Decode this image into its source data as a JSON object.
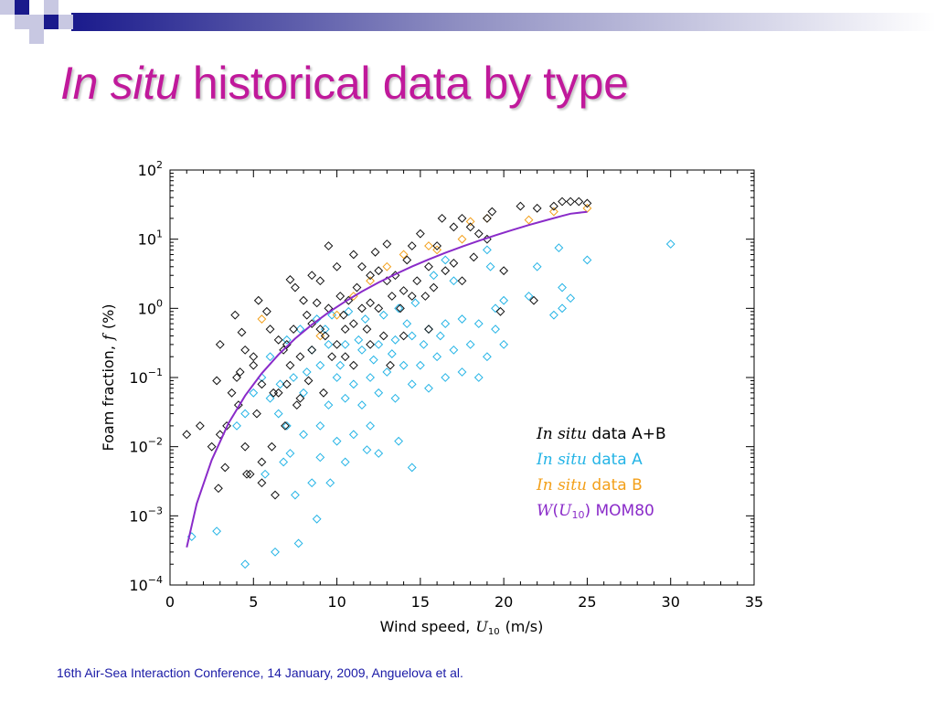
{
  "title": {
    "italic": "In situ",
    "rest": " historical data by type"
  },
  "footer": "16th Air-Sea Interaction Conference, 14 January, 2009, Anguelova et al.",
  "chart_data": {
    "type": "scatter",
    "xlabel": {
      "text": "Wind speed,",
      "sym": "U",
      "sub": "10",
      "unit": "(m/s)"
    },
    "ylabel": {
      "text": "Foam fraction,",
      "sym": "f",
      "unit": "(%)"
    },
    "xlim": [
      0,
      35
    ],
    "ylim": [
      0.0001,
      100
    ],
    "yscale": "log",
    "x_ticks": [
      "0",
      "5",
      "10",
      "15",
      "20",
      "25",
      "30",
      "35"
    ],
    "y_ticks": [
      {
        "base": "10",
        "exp": "2"
      },
      {
        "base": "10",
        "exp": "1"
      },
      {
        "base": "10",
        "exp": "0"
      },
      {
        "base": "10",
        "exp": "−1"
      },
      {
        "base": "10",
        "exp": "−2"
      },
      {
        "base": "10",
        "exp": "−3"
      },
      {
        "base": "10",
        "exp": "−4"
      }
    ],
    "legend_position": "lower-right",
    "series": [
      {
        "name": "In situ data A+B",
        "color": "#111111",
        "marker": "diamond",
        "points": [
          [
            1,
            0.015
          ],
          [
            1.8,
            0.02
          ],
          [
            2.5,
            0.01
          ],
          [
            2.8,
            0.09
          ],
          [
            3.0,
            0.3
          ],
          [
            3.0,
            0.015
          ],
          [
            3.4,
            0.02
          ],
          [
            3.7,
            0.06
          ],
          [
            3.9,
            0.8
          ],
          [
            4.0,
            0.1
          ],
          [
            4.2,
            0.12
          ],
          [
            4.3,
            0.45
          ],
          [
            4.5,
            0.25
          ],
          [
            4.5,
            0.01
          ],
          [
            4.6,
            0.004
          ],
          [
            4.8,
            0.004
          ],
          [
            5.0,
            0.2
          ],
          [
            5.0,
            0.15
          ],
          [
            5.3,
            1.3
          ],
          [
            5.5,
            0.08
          ],
          [
            5.5,
            0.006
          ],
          [
            5.5,
            0.003
          ],
          [
            5.8,
            0.9
          ],
          [
            6.0,
            0.5
          ],
          [
            6.2,
            0.06
          ],
          [
            6.3,
            0.002
          ],
          [
            6.5,
            0.35
          ],
          [
            6.5,
            0.06
          ],
          [
            6.8,
            0.25
          ],
          [
            7.0,
            0.08
          ],
          [
            7.0,
            0.3
          ],
          [
            7.2,
            0.15
          ],
          [
            7.2,
            2.6
          ],
          [
            7.4,
            0.5
          ],
          [
            7.5,
            2.0
          ],
          [
            7.8,
            0.05
          ],
          [
            7.8,
            0.2
          ],
          [
            8.0,
            1.3
          ],
          [
            8.2,
            0.8
          ],
          [
            8.5,
            0.6
          ],
          [
            8.5,
            0.25
          ],
          [
            8.5,
            3.0
          ],
          [
            8.8,
            1.2
          ],
          [
            9.0,
            0.5
          ],
          [
            9.0,
            2.5
          ],
          [
            9.3,
            0.4
          ],
          [
            9.5,
            1.0
          ],
          [
            9.5,
            8.0
          ],
          [
            9.7,
            0.2
          ],
          [
            10.0,
            0.3
          ],
          [
            10.0,
            4.0
          ],
          [
            10.2,
            1.5
          ],
          [
            10.4,
            0.8
          ],
          [
            10.5,
            0.5
          ],
          [
            10.7,
            1.3
          ],
          [
            11.0,
            6.0
          ],
          [
            11.0,
            0.6
          ],
          [
            11.2,
            2.0
          ],
          [
            11.5,
            1.0
          ],
          [
            11.5,
            4.0
          ],
          [
            11.8,
            0.5
          ],
          [
            12.0,
            3.0
          ],
          [
            12.0,
            1.2
          ],
          [
            12.3,
            6.5
          ],
          [
            12.5,
            1.0
          ],
          [
            12.5,
            3.5
          ],
          [
            12.8,
            0.4
          ],
          [
            13.0,
            2.5
          ],
          [
            13.0,
            8.5
          ],
          [
            13.3,
            1.5
          ],
          [
            13.5,
            3.0
          ],
          [
            13.8,
            1.0
          ],
          [
            14.0,
            1.8
          ],
          [
            14.2,
            5.0
          ],
          [
            14.5,
            1.5
          ],
          [
            14.5,
            8.0
          ],
          [
            14.8,
            2.5
          ],
          [
            15.0,
            12.0
          ],
          [
            15.3,
            1.5
          ],
          [
            15.5,
            4.0
          ],
          [
            15.8,
            2.0
          ],
          [
            16.0,
            8.0
          ],
          [
            16.3,
            20.0
          ],
          [
            16.5,
            3.5
          ],
          [
            17.0,
            4.5
          ],
          [
            17.0,
            15.0
          ],
          [
            17.5,
            2.5
          ],
          [
            17.5,
            20.0
          ],
          [
            18.0,
            15.0
          ],
          [
            18.2,
            5.5
          ],
          [
            18.5,
            12.0
          ],
          [
            19.0,
            20.0
          ],
          [
            19.0,
            10.0
          ],
          [
            19.3,
            25.0
          ],
          [
            19.8,
            0.9
          ],
          [
            20.0,
            3.5
          ],
          [
            21.0,
            30.0
          ],
          [
            21.8,
            1.3
          ],
          [
            22.0,
            28.0
          ],
          [
            23.0,
            30.0
          ],
          [
            23.5,
            35.0
          ],
          [
            24.0,
            35.0
          ],
          [
            24.5,
            35.0
          ],
          [
            25.0,
            33.0
          ],
          [
            12.0,
            0.3
          ],
          [
            11.0,
            0.15
          ],
          [
            10.5,
            0.2
          ],
          [
            9.2,
            0.06
          ],
          [
            8.3,
            0.09
          ],
          [
            7.6,
            0.04
          ],
          [
            6.9,
            0.02
          ],
          [
            6.1,
            0.01
          ],
          [
            5.2,
            0.03
          ],
          [
            4.1,
            0.04
          ],
          [
            3.3,
            0.005
          ],
          [
            2.9,
            0.0025
          ],
          [
            14.0,
            0.4
          ],
          [
            13.2,
            0.15
          ],
          [
            15.5,
            0.5
          ]
        ]
      },
      {
        "name": "In situ data A",
        "color": "#25b4e6",
        "marker": "diamond",
        "points": [
          [
            1.3,
            0.0005
          ],
          [
            2.8,
            0.0006
          ],
          [
            4.5,
            0.0002
          ],
          [
            6.3,
            0.0003
          ],
          [
            7.7,
            0.0004
          ],
          [
            8.8,
            0.0009
          ],
          [
            7.5,
            0.002
          ],
          [
            8.5,
            0.003
          ],
          [
            9.6,
            0.003
          ],
          [
            5.7,
            0.004
          ],
          [
            6.8,
            0.006
          ],
          [
            7.2,
            0.008
          ],
          [
            9.0,
            0.007
          ],
          [
            10.5,
            0.006
          ],
          [
            11.8,
            0.009
          ],
          [
            12.5,
            0.008
          ],
          [
            14.5,
            0.005
          ],
          [
            13.7,
            0.012
          ],
          [
            12.0,
            0.02
          ],
          [
            11.0,
            0.015
          ],
          [
            10.0,
            0.012
          ],
          [
            9.0,
            0.02
          ],
          [
            8.0,
            0.015
          ],
          [
            7.0,
            0.02
          ],
          [
            6.5,
            0.03
          ],
          [
            6.0,
            0.05
          ],
          [
            8.0,
            0.06
          ],
          [
            9.5,
            0.04
          ],
          [
            10.5,
            0.05
          ],
          [
            11.5,
            0.04
          ],
          [
            12.5,
            0.06
          ],
          [
            13.5,
            0.05
          ],
          [
            14.5,
            0.08
          ],
          [
            15.5,
            0.07
          ],
          [
            16.5,
            0.1
          ],
          [
            17.5,
            0.12
          ],
          [
            18.5,
            0.1
          ],
          [
            19.0,
            0.2
          ],
          [
            19.5,
            0.5
          ],
          [
            20.0,
            0.3
          ],
          [
            18.0,
            0.3
          ],
          [
            17.0,
            0.25
          ],
          [
            16.0,
            0.2
          ],
          [
            15.0,
            0.15
          ],
          [
            14.0,
            0.15
          ],
          [
            13.0,
            0.12
          ],
          [
            12.0,
            0.1
          ],
          [
            11.0,
            0.08
          ],
          [
            10.0,
            0.1
          ],
          [
            9.0,
            0.15
          ],
          [
            8.5,
            0.25
          ],
          [
            9.5,
            0.3
          ],
          [
            10.5,
            0.3
          ],
          [
            11.5,
            0.25
          ],
          [
            12.5,
            0.3
          ],
          [
            13.5,
            0.35
          ],
          [
            14.5,
            0.4
          ],
          [
            15.5,
            0.5
          ],
          [
            16.5,
            0.6
          ],
          [
            17.5,
            0.7
          ],
          [
            18.5,
            0.6
          ],
          [
            19.5,
            1.0
          ],
          [
            20.0,
            1.3
          ],
          [
            21.5,
            1.5
          ],
          [
            22.0,
            4.0
          ],
          [
            23.0,
            0.8
          ],
          [
            23.5,
            2.0
          ],
          [
            23.5,
            1.0
          ],
          [
            24.0,
            1.4
          ],
          [
            25.0,
            5.0
          ],
          [
            30.0,
            8.5
          ],
          [
            23.3,
            7.5
          ],
          [
            19.0,
            7.0
          ],
          [
            19.2,
            4.0
          ],
          [
            17.0,
            2.5
          ],
          [
            16.5,
            5.0
          ],
          [
            15.8,
            3.0
          ],
          [
            14.7,
            1.2
          ],
          [
            13.7,
            1.0
          ],
          [
            12.8,
            0.8
          ],
          [
            11.7,
            0.7
          ],
          [
            10.7,
            0.9
          ],
          [
            9.7,
            0.8
          ],
          [
            8.8,
            0.7
          ],
          [
            7.8,
            0.5
          ],
          [
            7.0,
            0.35
          ],
          [
            6.0,
            0.2
          ],
          [
            5.5,
            0.1
          ],
          [
            5.0,
            0.06
          ],
          [
            4.5,
            0.03
          ],
          [
            4.0,
            0.02
          ],
          [
            9.3,
            0.5
          ],
          [
            10.2,
            0.15
          ],
          [
            11.3,
            0.35
          ],
          [
            12.2,
            0.18
          ],
          [
            13.3,
            0.22
          ],
          [
            14.2,
            0.6
          ],
          [
            15.2,
            0.3
          ],
          [
            16.2,
            0.4
          ],
          [
            8.2,
            0.12
          ],
          [
            7.4,
            0.1
          ],
          [
            6.6,
            0.08
          ]
        ]
      },
      {
        "name": "In situ data B",
        "color": "#f3a01b",
        "marker": "diamond",
        "points": [
          [
            5.5,
            0.7
          ],
          [
            9.0,
            0.4
          ],
          [
            10.0,
            0.8
          ],
          [
            11.0,
            1.5
          ],
          [
            12.0,
            2.5
          ],
          [
            13.0,
            4.0
          ],
          [
            14.0,
            6.0
          ],
          [
            15.5,
            8.0
          ],
          [
            16.0,
            7.0
          ],
          [
            17.5,
            10.0
          ],
          [
            18.0,
            18.0
          ],
          [
            19.0,
            20.0
          ],
          [
            21.5,
            19.0
          ],
          [
            23.0,
            25.0
          ],
          [
            25.0,
            28.0
          ]
        ]
      },
      {
        "name": "W(U10) MOM80",
        "color": "#8a2bc9",
        "marker": "line",
        "points": [
          [
            1.0,
            0.00035
          ],
          [
            1.6,
            0.0015
          ],
          [
            2.5,
            0.0064
          ],
          [
            3.5,
            0.0217
          ],
          [
            4.5,
            0.0548
          ],
          [
            5.5,
            0.1152
          ],
          [
            6.5,
            0.2146
          ],
          [
            7.5,
            0.3651
          ],
          [
            8.5,
            0.5802
          ],
          [
            9.5,
            0.8734
          ],
          [
            10.5,
            1.259
          ],
          [
            11.5,
            1.7516
          ],
          [
            12.5,
            2.366
          ],
          [
            13.5,
            3.1177
          ],
          [
            14.5,
            4.0221
          ],
          [
            15.5,
            5.095
          ],
          [
            16.5,
            6.3527
          ],
          [
            17.5,
            7.8113
          ],
          [
            18.5,
            9.4877
          ],
          [
            19.5,
            11.3985
          ],
          [
            20.5,
            13.5609
          ],
          [
            21.5,
            15.9922
          ],
          [
            22.5,
            18.71
          ],
          [
            23.5,
            21.732
          ],
          [
            24.0,
            23.3681
          ],
          [
            25.0,
            24.9
          ]
        ]
      }
    ]
  }
}
